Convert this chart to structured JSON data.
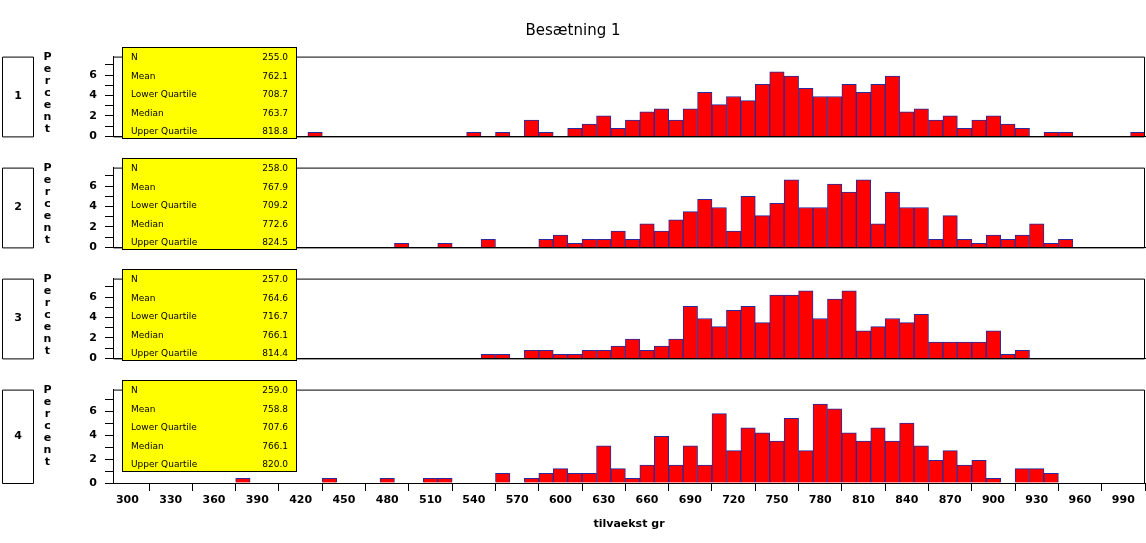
{
  "chart_data": [
    {
      "type": "histogram",
      "title": "Besætning 1",
      "ylabel": "Percent",
      "color": "#ff0000",
      "tick_labels": "y",
      "bins": [
        295,
        305,
        315,
        325,
        335,
        345,
        355,
        365,
        375,
        385,
        395,
        405,
        415,
        425,
        435,
        445,
        455,
        465,
        475,
        485,
        495,
        505,
        515,
        525,
        535,
        545,
        555,
        565,
        575,
        585,
        595,
        605,
        615,
        625,
        635,
        645,
        655,
        665,
        675,
        685,
        695,
        705,
        715,
        725,
        735,
        745,
        755,
        765,
        775,
        785,
        795,
        805,
        815,
        825,
        835,
        845,
        855,
        865,
        875,
        885,
        895,
        905,
        915,
        925,
        935,
        945,
        955,
        965,
        975,
        985,
        995,
        1005
      ],
      "values": [
        0,
        0,
        0,
        0,
        0,
        0,
        0,
        0,
        0,
        0,
        0,
        0,
        0,
        0.4,
        0,
        0,
        0,
        0,
        0,
        0,
        0,
        0,
        0,
        0,
        0.4,
        0,
        0.4,
        0,
        1.6,
        0.4,
        0,
        0.8,
        1.2,
        2.0,
        0.8,
        1.6,
        2.4,
        2.7,
        1.6,
        2.7,
        4.3,
        3.1,
        3.9,
        3.5,
        5.1,
        6.3,
        5.9,
        4.7,
        3.9,
        3.9,
        5.1,
        4.3,
        5.1,
        5.9,
        2.4,
        2.7,
        1.6,
        2.0,
        0.8,
        1.6,
        2.0,
        1.2,
        0.8,
        0,
        0.4,
        0.4,
        0,
        0,
        0,
        0,
        0.4
      ],
      "xlim": [
        290,
        1005
      ],
      "ylim": [
        0,
        7.8
      ],
      "yticks": [
        0,
        {
          "value": 1,
          "label": null
        },
        2,
        {
          "value": 3,
          "label": null
        },
        4,
        {
          "value": 5,
          "label": null
        },
        6,
        {
          "value": 7,
          "label": null
        }
      ],
      "annotations": [
        "1",
        "N",
        "255.0",
        "Mean",
        "762.1",
        "Lower Quartile",
        "708.7",
        "Median",
        "763.7",
        "Upper Quartile",
        "818.8"
      ]
    },
    {
      "type": "histogram",
      "ylabel": "Percent",
      "color": "#ff0000",
      "tick_labels": "y",
      "bins": [
        295,
        305,
        315,
        325,
        335,
        345,
        355,
        365,
        375,
        385,
        395,
        405,
        415,
        425,
        435,
        445,
        455,
        465,
        475,
        485,
        495,
        505,
        515,
        525,
        535,
        545,
        555,
        565,
        575,
        585,
        595,
        605,
        615,
        625,
        635,
        645,
        655,
        665,
        675,
        685,
        695,
        705,
        715,
        725,
        735,
        745,
        755,
        765,
        775,
        785,
        795,
        805,
        815,
        825,
        835,
        845,
        855,
        865,
        875,
        885,
        895,
        905,
        915,
        925,
        935,
        945,
        955,
        965,
        975,
        985,
        995,
        1005
      ],
      "values": [
        0,
        0,
        0,
        0,
        0,
        0,
        0,
        0,
        0,
        0,
        0,
        0,
        0,
        0,
        0,
        0,
        0,
        0,
        0,
        0.4,
        0,
        0,
        0.4,
        0,
        0,
        0.8,
        0,
        0,
        0,
        0.8,
        1.2,
        0.4,
        0.8,
        0.8,
        1.6,
        0.8,
        2.3,
        1.6,
        2.7,
        3.5,
        4.7,
        3.9,
        1.6,
        5.0,
        3.1,
        4.3,
        6.6,
        3.9,
        3.9,
        6.2,
        5.4,
        6.6,
        2.3,
        5.4,
        3.9,
        3.9,
        0.8,
        3.1,
        0.8,
        0.4,
        1.2,
        0.8,
        1.2,
        2.3,
        0.4,
        0.8,
        0,
        0,
        0,
        0,
        0
      ],
      "xlim": [
        290,
        1005
      ],
      "ylim": [
        0,
        7.8
      ],
      "yticks": [
        0,
        {
          "value": 1,
          "label": null
        },
        2,
        {
          "value": 3,
          "label": null
        },
        4,
        {
          "value": 5,
          "label": null
        },
        6,
        {
          "value": 7,
          "label": null
        }
      ],
      "annotations": [
        "2",
        "N",
        "258.0",
        "Mean",
        "767.9",
        "Lower Quartile",
        "709.2",
        "Median",
        "772.6",
        "Upper Quartile",
        "824.5"
      ]
    },
    {
      "type": "histogram",
      "ylabel": "Percent",
      "color": "#ff0000",
      "tick_labels": "y",
      "bins": [
        295,
        305,
        315,
        325,
        335,
        345,
        355,
        365,
        375,
        385,
        395,
        405,
        415,
        425,
        435,
        445,
        455,
        465,
        475,
        485,
        495,
        505,
        515,
        525,
        535,
        545,
        555,
        565,
        575,
        585,
        595,
        605,
        615,
        625,
        635,
        645,
        655,
        665,
        675,
        685,
        695,
        705,
        715,
        725,
        735,
        745,
        755,
        765,
        775,
        785,
        795,
        805,
        815,
        825,
        835,
        845,
        855,
        865,
        875,
        885,
        895,
        905,
        915,
        925,
        935,
        945,
        955,
        965,
        975,
        985,
        995,
        1005
      ],
      "values": [
        0,
        0,
        0,
        0,
        0,
        0,
        0,
        0,
        0,
        0,
        0,
        0,
        0,
        0,
        0,
        0,
        0,
        0,
        0,
        0,
        0,
        0,
        0,
        0,
        0,
        0.4,
        0.4,
        0,
        0.8,
        0.8,
        0.4,
        0.4,
        0.8,
        0.8,
        1.2,
        1.9,
        0.8,
        1.2,
        1.9,
        5.1,
        3.9,
        3.1,
        4.7,
        5.1,
        3.5,
        6.2,
        6.2,
        6.6,
        3.9,
        5.8,
        6.6,
        2.7,
        3.1,
        3.9,
        3.5,
        4.3,
        1.6,
        1.6,
        1.6,
        1.6,
        2.7,
        0.4,
        0.8,
        0,
        0,
        0,
        0,
        0,
        0,
        0,
        0
      ],
      "xlim": [
        290,
        1005
      ],
      "ylim": [
        0,
        7.8
      ],
      "yticks": [
        0,
        {
          "value": 1,
          "label": null
        },
        2,
        {
          "value": 3,
          "label": null
        },
        4,
        {
          "value": 5,
          "label": null
        },
        6,
        {
          "value": 7,
          "label": null
        }
      ],
      "annotations": [
        "3",
        "N",
        "257.0",
        "Mean",
        "764.6",
        "Lower Quartile",
        "716.7",
        "Median",
        "766.1",
        "Upper Quartile",
        "814.4"
      ]
    },
    {
      "type": "histogram",
      "ylabel": "Percent",
      "xlabel": "tilvaekst gr",
      "color": "#ff0000",
      "bins": [
        295,
        305,
        315,
        325,
        335,
        345,
        355,
        365,
        375,
        385,
        395,
        405,
        415,
        425,
        435,
        445,
        455,
        465,
        475,
        485,
        495,
        505,
        515,
        525,
        535,
        545,
        555,
        565,
        575,
        585,
        595,
        605,
        615,
        625,
        635,
        645,
        655,
        665,
        675,
        685,
        695,
        705,
        715,
        725,
        735,
        745,
        755,
        765,
        775,
        785,
        795,
        805,
        815,
        825,
        835,
        845,
        855,
        865,
        875,
        885,
        895,
        905,
        915,
        925,
        935,
        945,
        955,
        965,
        975,
        985,
        995,
        1005
      ],
      "values": [
        0,
        0,
        0,
        0,
        0,
        0,
        0,
        0,
        0.4,
        0,
        0,
        0,
        0,
        0,
        0.4,
        0,
        0,
        0,
        0.4,
        0,
        0,
        0.4,
        0.4,
        0,
        0,
        0,
        0.8,
        0,
        0.4,
        0.8,
        1.2,
        0.8,
        0.8,
        3.1,
        1.2,
        0.4,
        1.5,
        3.9,
        1.5,
        3.1,
        1.5,
        5.8,
        2.7,
        4.6,
        4.2,
        3.5,
        5.4,
        2.7,
        6.6,
        6.2,
        4.2,
        3.5,
        4.6,
        3.5,
        5.0,
        3.1,
        1.9,
        2.7,
        1.5,
        1.9,
        0.4,
        0,
        1.2,
        1.2,
        0.8,
        0,
        0,
        0,
        0,
        0,
        0
      ],
      "xlim": [
        290,
        1005
      ],
      "ylim": [
        0,
        7.8
      ],
      "xticks": [
        300,
        330,
        360,
        390,
        420,
        450,
        480,
        510,
        540,
        570,
        600,
        630,
        660,
        690,
        720,
        750,
        780,
        810,
        840,
        870,
        900,
        930,
        960,
        990
      ],
      "yticks": [
        0,
        {
          "value": 1,
          "label": null
        },
        2,
        {
          "value": 3,
          "label": null
        },
        4,
        {
          "value": 5,
          "label": null
        },
        6,
        {
          "value": 7,
          "label": null
        }
      ],
      "annotations": [
        "4",
        "N",
        "259.0",
        "Mean",
        "758.8",
        "Lower Quartile",
        "707.6",
        "Median",
        "766.1",
        "Upper Quartile",
        "820.0"
      ]
    }
  ]
}
